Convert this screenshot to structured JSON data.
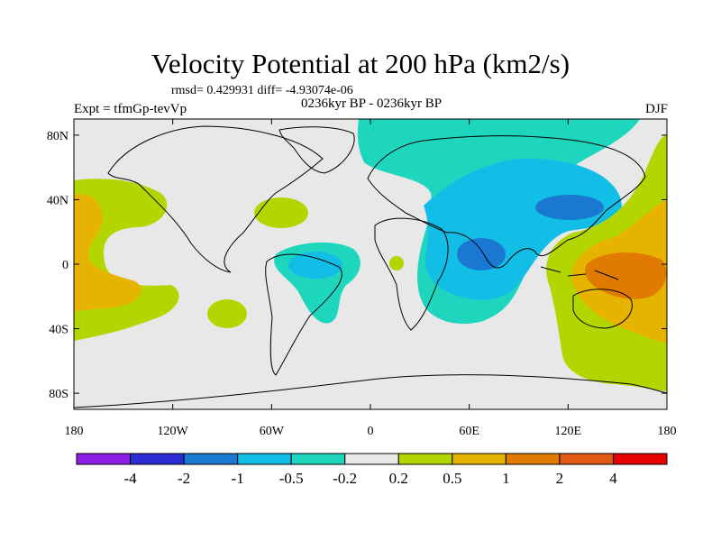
{
  "title": "Velocity Potential at 200 hPa (km2/s)",
  "stats": "rmsd= 0.429931 diff= -4.93074e-06",
  "period": "0236kyr BP - 0236kyr BP",
  "experiment": "Expt = tfmGp-tevVp",
  "season": "DJF",
  "chart_data": {
    "type": "heatmap",
    "variable": "Velocity Potential at 200 hPa",
    "units": "km2/s",
    "lon_ticks": [
      "180",
      "120W",
      "60W",
      "0",
      "60E",
      "120E",
      "180"
    ],
    "lat_ticks": [
      "80N",
      "40N",
      "0",
      "40S",
      "80S"
    ],
    "xlim": [
      -180,
      180
    ],
    "ylim": [
      -90,
      90
    ],
    "colorbar": {
      "labels": [
        "-4",
        "-2",
        "-1",
        "-0.5",
        "-0.2",
        "0.2",
        "0.5",
        "1",
        "2",
        "4"
      ],
      "colors": [
        "#8c1ee6",
        "#2d2bd6",
        "#1a78d2",
        "#12bee6",
        "#1ed6be",
        "#e8e8e8",
        "#b4d600",
        "#e6b400",
        "#e07a00",
        "#e05a14",
        "#e60000"
      ]
    }
  }
}
